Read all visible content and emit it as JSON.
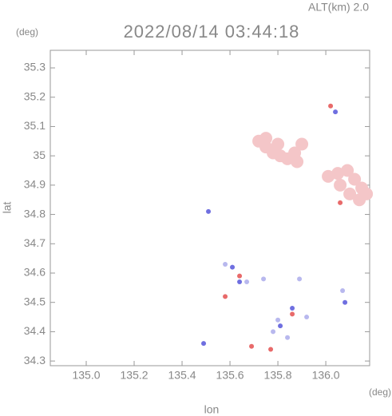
{
  "chart_data": {
    "type": "scatter",
    "header": "ALT(km) 2.0",
    "title": "2022/08/14 03:44:18",
    "y_unit": "(deg)",
    "x_unit": "(deg)",
    "x_label": "lon",
    "y_label": "lat",
    "xlim": [
      134.85,
      136.183
    ],
    "ylim": [
      34.284,
      35.36
    ],
    "xticks": [
      {
        "value": 135,
        "label": "135.0"
      },
      135.2,
      135.4,
      135.6,
      135.8,
      {
        "value": 136,
        "label": "136.0"
      }
    ],
    "yticks": [
      34.3,
      34.4,
      34.5,
      34.6,
      34.7,
      34.8,
      34.9,
      35.0,
      35.1,
      35.2,
      35.3
    ],
    "x": [
      135.72,
      135.75,
      135.78,
      135.81,
      135.84,
      135.87,
      135.9,
      135.88,
      135.75,
      135.8,
      136.01,
      136.05,
      136.09,
      136.12,
      136.15,
      136.17,
      136.1,
      136.06,
      136.14,
      136.02,
      136.06,
      135.58,
      135.64,
      135.69,
      135.77,
      135.86,
      136.04,
      135.61,
      135.64,
      135.81,
      135.86,
      136.08,
      135.51,
      135.49,
      135.58,
      135.67,
      135.78,
      135.84,
      135.92,
      135.89,
      136.07,
      135.8,
      135.74
    ],
    "values": [
      35.05,
      35.03,
      35.01,
      35.0,
      34.99,
      35.01,
      35.04,
      34.98,
      35.06,
      35.04,
      34.93,
      34.94,
      34.95,
      34.92,
      34.89,
      34.87,
      34.87,
      34.9,
      34.85,
      35.17,
      34.84,
      34.52,
      34.59,
      34.35,
      34.34,
      34.46,
      35.15,
      34.62,
      34.57,
      34.42,
      34.48,
      34.5,
      34.81,
      34.36,
      34.63,
      34.57,
      34.4,
      34.38,
      34.45,
      34.58,
      34.54,
      34.44,
      34.58
    ],
    "colors": [
      "#f4c6c8",
      "#f4c6c8",
      "#f4c6c8",
      "#f4c6c8",
      "#f4c6c8",
      "#f4c6c8",
      "#f4c6c8",
      "#f4c6c8",
      "#f4c6c8",
      "#f4c6c8",
      "#f4c6c8",
      "#f4c6c8",
      "#f4c6c8",
      "#f4c6c8",
      "#f4c6c8",
      "#f4c6c8",
      "#f4c6c8",
      "#f4c6c8",
      "#f4c6c8",
      "#e86a6a",
      "#e86a6a",
      "#e86a6a",
      "#e86a6a",
      "#e86a6a",
      "#e86a6a",
      "#e86a6a",
      "#6f6fe0",
      "#6f6fe0",
      "#6f6fe0",
      "#6f6fe0",
      "#6f6fe0",
      "#6f6fe0",
      "#6f6fe0",
      "#6f6fe0",
      "#b8b8ee",
      "#b8b8ee",
      "#b8b8ee",
      "#b8b8ee",
      "#b8b8ee",
      "#b8b8ee",
      "#b8b8ee",
      "#b8b8ee",
      "#b8b8ee"
    ]
  }
}
